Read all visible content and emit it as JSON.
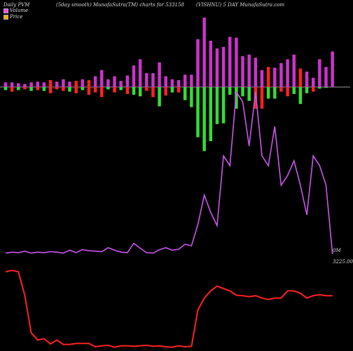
{
  "header": {
    "left": "Daily PVM",
    "middle": "(5day smooth) MunafaSutra(TM) charts for 533158",
    "right": "(VISHNU) 5 DAY MunafaSutra.com"
  },
  "legend": [
    {
      "label": "Volume",
      "color": "#ff44ff"
    },
    {
      "label": "Price",
      "color": "#ffaa00"
    }
  ],
  "right_labels": {
    "volume": "0M",
    "price": "3225.00"
  },
  "colors": {
    "volume_up": "#cc33cc",
    "volume_down_pos": "#ff2222",
    "volume_neg_up": "#33dd33",
    "volume_neg_down": "#ff2222",
    "volume_line": "#cc55ee",
    "price_line": "#ff2222",
    "baseline": "#999999"
  },
  "chart_data": {
    "type": "line",
    "n": 52,
    "series": [
      {
        "key": "bars_positive",
        "values": [
          6,
          6,
          5,
          4,
          6,
          7,
          6,
          9,
          7,
          10,
          7,
          8,
          10,
          9,
          14,
          22,
          10,
          14,
          8,
          15,
          28,
          36,
          18,
          18,
          32,
          14,
          10,
          9,
          16,
          16,
          62,
          90,
          60,
          50,
          52,
          65,
          64,
          40,
          42,
          38,
          22,
          26,
          25,
          31,
          36,
          42,
          24,
          20,
          12,
          36,
          26,
          46
        ],
        "colors": [
          "m",
          "m",
          "m",
          "m",
          "m",
          "m",
          "m",
          "r",
          "m",
          "m",
          "m",
          "r",
          "m",
          "r",
          "m",
          "m",
          "m",
          "m",
          "m",
          "m",
          "m",
          "m",
          "m",
          "m",
          "m",
          "m",
          "m",
          "m",
          "m",
          "m",
          "m",
          "m",
          "m",
          "m",
          "m",
          "m",
          "m",
          "m",
          "m",
          "m",
          "m",
          "r",
          "m",
          "m",
          "m",
          "m",
          "r",
          "m",
          "m",
          "m",
          "m",
          "m"
        ]
      },
      {
        "key": "bars_negative",
        "values": [
          4,
          6,
          4,
          3,
          5,
          4,
          5,
          8,
          3,
          5,
          6,
          8,
          4,
          10,
          7,
          13,
          3,
          7,
          4,
          9,
          10,
          12,
          5,
          13,
          25,
          11,
          7,
          7,
          17,
          26,
          65,
          83,
          70,
          48,
          47,
          10,
          28,
          12,
          18,
          28,
          28,
          15,
          15,
          6,
          12,
          9,
          22,
          8,
          6,
          2,
          1,
          0
        ],
        "colors": [
          "g",
          "r",
          "g",
          "r",
          "g",
          "r",
          "g",
          "r",
          "r",
          "r",
          "g",
          "r",
          "g",
          "r",
          "r",
          "r",
          "g",
          "r",
          "g",
          "r",
          "g",
          "g",
          "r",
          "r",
          "g",
          "r",
          "g",
          "r",
          "g",
          "g",
          "g",
          "g",
          "g",
          "g",
          "g",
          "g",
          "g",
          "g",
          "g",
          "r",
          "r",
          "g",
          "g",
          "r",
          "r",
          "g",
          "g",
          "g",
          "r",
          "g",
          "g",
          "g"
        ]
      },
      {
        "key": "volume",
        "values": [
          2,
          4,
          3,
          6,
          2,
          4,
          3,
          5,
          4,
          2,
          8,
          3,
          9,
          7,
          6,
          5,
          13,
          8,
          4,
          3,
          22,
          12,
          3,
          2,
          9,
          13,
          8,
          10,
          20,
          17,
          60,
          120,
          85,
          58,
          200,
          180,
          330,
          310,
          220,
          330,
          200,
          180,
          260,
          140,
          160,
          190,
          140,
          80,
          200,
          180,
          140,
          0
        ]
      },
      {
        "key": "price",
        "values": [
          3800,
          3830,
          3800,
          3300,
          2520,
          2370,
          2400,
          2290,
          2370,
          2280,
          2280,
          2300,
          2300,
          2300,
          2230,
          2250,
          2260,
          2220,
          2250,
          2250,
          2240,
          2250,
          2260,
          2240,
          2250,
          2230,
          2220,
          2250,
          2230,
          2240,
          3000,
          3250,
          3400,
          3500,
          3450,
          3400,
          3310,
          3300,
          3280,
          3300,
          3250,
          3220,
          3250,
          3250,
          3400,
          3400,
          3350,
          3250,
          3300,
          3320,
          3300,
          3300
        ]
      }
    ]
  }
}
